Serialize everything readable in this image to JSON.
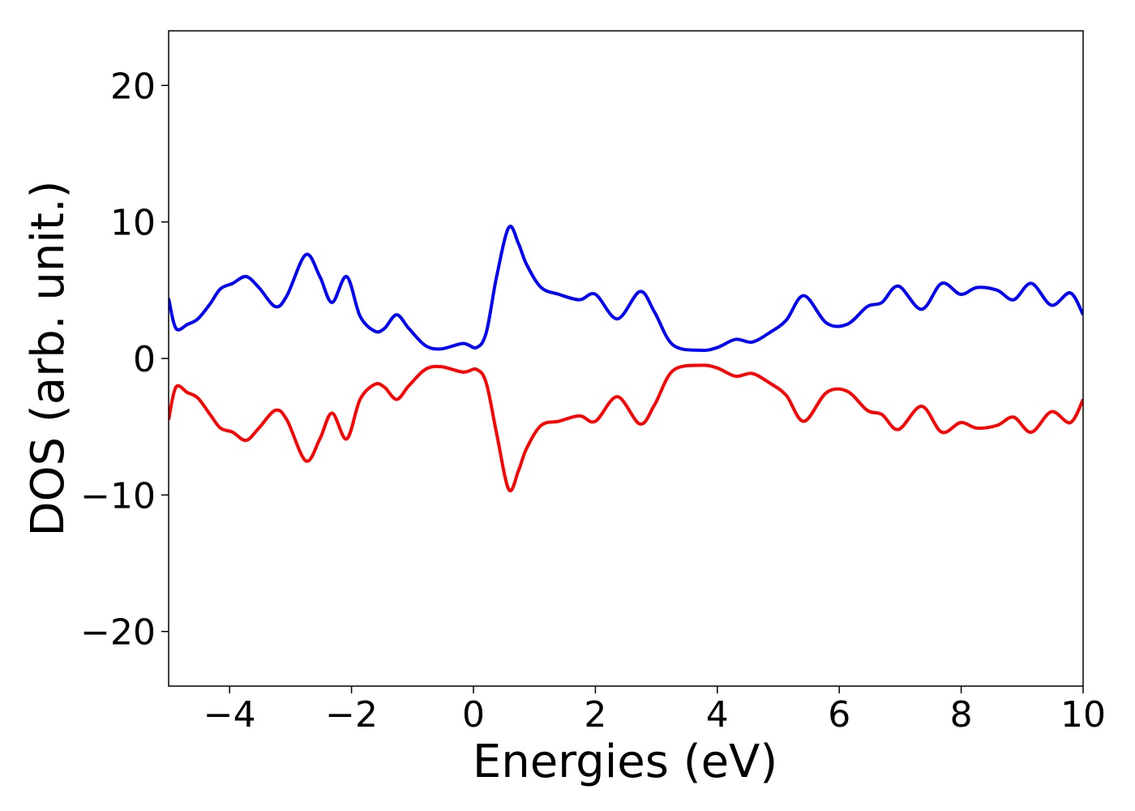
{
  "chart_data": {
    "type": "line",
    "xlabel": "Energies (eV)",
    "ylabel": "DOS (arb. unit.)",
    "xlim": [
      -5,
      10
    ],
    "ylim": [
      -24,
      24
    ],
    "xticks": [
      {
        "value": -4,
        "label": "−4"
      },
      {
        "value": -2,
        "label": "−2"
      },
      0,
      2,
      4,
      6,
      8,
      10
    ],
    "yticks": [
      {
        "value": -20,
        "label": "−20"
      },
      {
        "value": -10,
        "label": "−10"
      },
      0,
      10,
      20
    ],
    "grid": false,
    "x": [
      -5,
      -4.88,
      -4.69,
      -4.52,
      -4.32,
      -4.15,
      -3.95,
      -3.73,
      -3.52,
      -3.25,
      -3.06,
      -2.75,
      -2.52,
      -2.32,
      -2.08,
      -1.86,
      -1.62,
      -1.46,
      -1.26,
      -1.06,
      -0.79,
      -0.53,
      -0.17,
      0.05,
      0.21,
      0.38,
      0.58,
      0.74,
      0.87,
      1.11,
      1.4,
      1.74,
      2.0,
      2.36,
      2.73,
      2.97,
      3.27,
      3.73,
      4.0,
      4.3,
      4.57,
      4.86,
      5.13,
      5.42,
      5.79,
      6.13,
      6.46,
      6.7,
      6.97,
      7.35,
      7.68,
      7.99,
      8.26,
      8.59,
      8.86,
      9.15,
      9.48,
      9.79,
      10.0
    ],
    "series": [
      {
        "color": "#0000ff",
        "values": [
          4.4,
          2.2,
          2.5,
          2.9,
          4.0,
          5.1,
          5.5,
          6.0,
          5.2,
          3.8,
          4.6,
          7.6,
          6.0,
          4.1,
          6.0,
          3.1,
          2.0,
          2.2,
          3.2,
          2.2,
          0.95,
          0.7,
          1.1,
          0.8,
          1.9,
          6.0,
          9.6,
          8.4,
          6.9,
          5.2,
          4.7,
          4.3,
          4.7,
          2.9,
          4.9,
          3.4,
          1.0,
          0.6,
          0.8,
          1.4,
          1.2,
          1.9,
          2.8,
          4.6,
          2.6,
          2.5,
          3.8,
          4.1,
          5.3,
          3.6,
          5.5,
          4.7,
          5.2,
          5.0,
          4.3,
          5.5,
          3.9,
          4.8,
          3.2
        ]
      },
      {
        "color": "#ff0000",
        "values": [
          -4.5,
          -2.1,
          -2.5,
          -2.9,
          -4.1,
          -5.1,
          -5.4,
          -6.0,
          -5.1,
          -3.8,
          -4.5,
          -7.5,
          -5.9,
          -4.0,
          -5.9,
          -3.0,
          -1.9,
          -2.1,
          -3.0,
          -2.0,
          -0.8,
          -0.6,
          -1.0,
          -0.8,
          -1.8,
          -5.5,
          -9.6,
          -8.2,
          -6.6,
          -4.9,
          -4.6,
          -4.2,
          -4.6,
          -2.8,
          -4.8,
          -3.4,
          -0.9,
          -0.5,
          -0.7,
          -1.3,
          -1.1,
          -1.8,
          -2.7,
          -4.6,
          -2.5,
          -2.4,
          -3.8,
          -4.1,
          -5.2,
          -3.5,
          -5.4,
          -4.7,
          -5.1,
          -4.9,
          -4.3,
          -5.4,
          -3.9,
          -4.7,
          -3.0
        ]
      }
    ]
  }
}
